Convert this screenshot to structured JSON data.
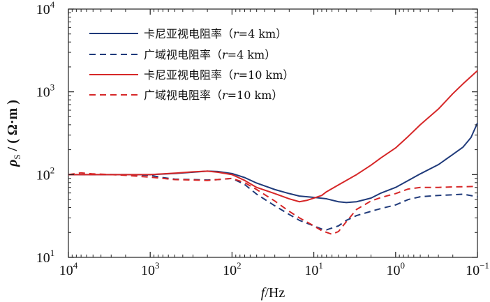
{
  "chart_data": {
    "type": "line",
    "title": "",
    "xlabel": "f/Hz",
    "xlabel_parts": {
      "var": "f",
      "unit": "/Hz"
    },
    "ylabel": "ρS / (Ω·m)",
    "ylabel_parts": {
      "var": "ρ",
      "sub": "S",
      "unit": " / ( Ω·m )"
    },
    "x_scale": "log",
    "y_scale": "log",
    "x_reversed": true,
    "xlim": [
      10000,
      0.1
    ],
    "ylim": [
      10,
      10000
    ],
    "grid": false,
    "legend_position": "top-left",
    "x_ticks": [
      {
        "value": 10000,
        "base": "10",
        "exp": "4"
      },
      {
        "value": 1000,
        "base": "10",
        "exp": "3"
      },
      {
        "value": 100,
        "base": "10",
        "exp": "2"
      },
      {
        "value": 10,
        "base": "10",
        "exp": "1"
      },
      {
        "value": 1,
        "base": "10",
        "exp": "0"
      },
      {
        "value": 0.1,
        "base": "10",
        "exp": "−1"
      }
    ],
    "y_ticks": [
      {
        "value": 10,
        "base": "10",
        "exp": "1"
      },
      {
        "value": 100,
        "base": "10",
        "exp": "2"
      },
      {
        "value": 1000,
        "base": "10",
        "exp": "3"
      },
      {
        "value": 10000,
        "base": "10",
        "exp": "4"
      }
    ],
    "series": [
      {
        "name": "卡尼亚视电阻率（r=4 km）",
        "label_parts": [
          "卡尼亚视电阻率（",
          "r",
          "=4 km）"
        ],
        "color": "#1f3a7a",
        "dash": "solid",
        "points": [
          [
            10000,
            100
          ],
          [
            5000,
            100
          ],
          [
            2000,
            100
          ],
          [
            1000,
            100
          ],
          [
            500,
            103
          ],
          [
            300,
            107
          ],
          [
            200,
            110
          ],
          [
            150,
            109
          ],
          [
            100,
            103
          ],
          [
            70,
            92
          ],
          [
            50,
            79
          ],
          [
            30,
            66
          ],
          [
            20,
            59
          ],
          [
            15,
            55
          ],
          [
            10,
            53
          ],
          [
            7,
            51
          ],
          [
            5,
            47
          ],
          [
            4,
            46
          ],
          [
            3,
            47
          ],
          [
            2,
            52
          ],
          [
            1.5,
            60
          ],
          [
            1,
            70
          ],
          [
            0.7,
            85
          ],
          [
            0.5,
            102
          ],
          [
            0.3,
            132
          ],
          [
            0.2,
            175
          ],
          [
            0.15,
            215
          ],
          [
            0.12,
            280
          ],
          [
            0.1,
            420
          ]
        ]
      },
      {
        "name": "广域视电阻率（r=4 km）",
        "label_parts": [
          "广域视电阻率（",
          "r",
          "=4 km）"
        ],
        "color": "#1f3a7a",
        "dash": "dashed",
        "points": [
          [
            10000,
            100
          ],
          [
            5000,
            100
          ],
          [
            2000,
            100
          ],
          [
            1000,
            98
          ],
          [
            700,
            92
          ],
          [
            500,
            88
          ],
          [
            300,
            87
          ],
          [
            200,
            86
          ],
          [
            150,
            87
          ],
          [
            100,
            90
          ],
          [
            70,
            76
          ],
          [
            50,
            58
          ],
          [
            30,
            42
          ],
          [
            20,
            33
          ],
          [
            15,
            28
          ],
          [
            10,
            24
          ],
          [
            8,
            22
          ],
          [
            7,
            21.5
          ],
          [
            5,
            24
          ],
          [
            4,
            28
          ],
          [
            3,
            32
          ],
          [
            2,
            36
          ],
          [
            1.5,
            39
          ],
          [
            1,
            43
          ],
          [
            0.7,
            50
          ],
          [
            0.5,
            54
          ],
          [
            0.3,
            56
          ],
          [
            0.2,
            57
          ],
          [
            0.15,
            58
          ],
          [
            0.1,
            54
          ]
        ]
      },
      {
        "name": "卡尼亚视电阻率（r=10 km）",
        "label_parts": [
          "卡尼亚视电阻率（",
          "r",
          "=10 km）"
        ],
        "color": "#d62728",
        "dash": "solid",
        "points": [
          [
            10000,
            100
          ],
          [
            5000,
            100
          ],
          [
            2000,
            100
          ],
          [
            1000,
            100
          ],
          [
            500,
            104
          ],
          [
            300,
            108
          ],
          [
            200,
            110
          ],
          [
            150,
            107
          ],
          [
            100,
            100
          ],
          [
            70,
            85
          ],
          [
            50,
            70
          ],
          [
            30,
            59
          ],
          [
            20,
            51
          ],
          [
            15,
            47
          ],
          [
            12,
            49
          ],
          [
            10,
            52
          ],
          [
            8,
            56
          ],
          [
            7,
            62
          ],
          [
            5,
            75
          ],
          [
            3,
            100
          ],
          [
            2,
            130
          ],
          [
            1.5,
            160
          ],
          [
            1,
            210
          ],
          [
            0.7,
            290
          ],
          [
            0.5,
            400
          ],
          [
            0.3,
            620
          ],
          [
            0.2,
            950
          ],
          [
            0.15,
            1250
          ],
          [
            0.1,
            1800
          ]
        ]
      },
      {
        "name": "广域视电阻率（r=10 km）",
        "label_parts": [
          "广域视电阻率（",
          "r",
          "=10 km）"
        ],
        "color": "#d62728",
        "dash": "dashed",
        "points": [
          [
            10000,
            100
          ],
          [
            7000,
            105
          ],
          [
            5000,
            102
          ],
          [
            3000,
            100
          ],
          [
            2000,
            98
          ],
          [
            1000,
            93
          ],
          [
            700,
            90
          ],
          [
            500,
            87
          ],
          [
            300,
            86
          ],
          [
            200,
            85
          ],
          [
            150,
            87
          ],
          [
            100,
            90
          ],
          [
            70,
            80
          ],
          [
            50,
            66
          ],
          [
            30,
            48
          ],
          [
            20,
            36
          ],
          [
            15,
            30
          ],
          [
            10,
            24
          ],
          [
            8,
            21
          ],
          [
            6,
            19
          ],
          [
            5,
            20.5
          ],
          [
            4,
            27
          ],
          [
            3,
            38
          ],
          [
            2,
            48
          ],
          [
            1.5,
            53
          ],
          [
            1,
            59
          ],
          [
            0.7,
            67
          ],
          [
            0.5,
            70
          ],
          [
            0.3,
            70
          ],
          [
            0.2,
            71
          ],
          [
            0.1,
            72
          ]
        ]
      }
    ]
  }
}
